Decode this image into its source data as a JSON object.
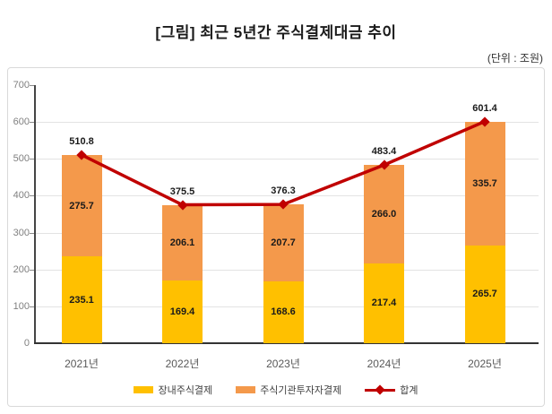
{
  "title": "[그림] 최근 5년간 주식결제대금 추이",
  "unit_label": "(단위 : 조원)",
  "chart_data": {
    "type": "bar",
    "stacked": true,
    "title": "[그림] 최근 5년간 주식결제대금 추이",
    "unit": "조원",
    "categories": [
      "2021년",
      "2022년",
      "2023년",
      "2024년",
      "2025년"
    ],
    "series": [
      {
        "name": "장내주식결제",
        "type": "bar",
        "color": "#FFC000",
        "values": [
          235.1,
          169.4,
          168.6,
          217.4,
          265.7
        ]
      },
      {
        "name": "주식기관투자자결제",
        "type": "bar",
        "color": "#F4994B",
        "values": [
          275.7,
          206.1,
          207.7,
          266.0,
          335.7
        ]
      },
      {
        "name": "합계",
        "type": "line",
        "color": "#C00000",
        "values": [
          510.8,
          375.5,
          376.3,
          483.4,
          601.4
        ]
      }
    ],
    "ylim": [
      0,
      700
    ],
    "ytick_interval": 100,
    "grid": true,
    "legend_position": "bottom"
  }
}
